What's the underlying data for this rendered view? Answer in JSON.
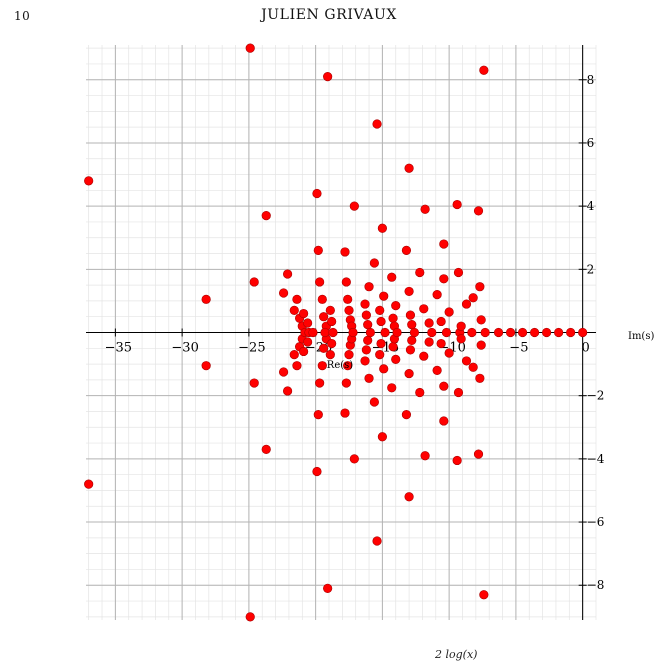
{
  "page": {
    "page_number": "10",
    "running_head": "JULIEN GRIVAUX",
    "footer_fragment": "2 log(x)"
  },
  "colors": {
    "points": "#ff0000",
    "points_edge": "#aa0000",
    "grid_major": "#b3b3b3",
    "grid_minor": "#e4e4e4",
    "axis": "#000000"
  },
  "chart_data": {
    "type": "scatter",
    "xlabel": "Re(s)",
    "ylabel": "Im(s)",
    "xlim": [
      -37.2,
      1.0
    ],
    "ylim": [
      -9.1,
      9.1
    ],
    "xticks": [
      -35,
      -30,
      -25,
      -20,
      -15,
      -10,
      -5,
      0
    ],
    "xtick_labels": [
      "−35",
      "−30",
      "−25",
      "−20",
      "−15",
      "−10",
      "−5",
      "0"
    ],
    "yticks": [
      -8,
      -6,
      -4,
      -2,
      2,
      4,
      6,
      8
    ],
    "ytick_labels": [
      "−8",
      "−6",
      "−4",
      "−2",
      "2",
      "4",
      "6",
      "8"
    ],
    "grid": true,
    "points": [
      [
        -37,
        4.8
      ],
      [
        -37,
        -4.8
      ],
      [
        -28.2,
        1.05
      ],
      [
        -28.2,
        -1.05
      ],
      [
        -24.9,
        9.0
      ],
      [
        -24.9,
        -9.0
      ],
      [
        -24.6,
        1.6
      ],
      [
        -24.6,
        -1.6
      ],
      [
        -23.7,
        3.7
      ],
      [
        -23.7,
        -3.7
      ],
      [
        -22.4,
        1.25
      ],
      [
        -22.4,
        -1.25
      ],
      [
        -22.1,
        1.85
      ],
      [
        -22.1,
        -1.85
      ],
      [
        -21.6,
        0.7
      ],
      [
        -21.6,
        -0.7
      ],
      [
        -21.4,
        1.05
      ],
      [
        -21.4,
        -1.05
      ],
      [
        -21.2,
        0.45
      ],
      [
        -21.2,
        -0.45
      ],
      [
        -21.0,
        0.2
      ],
      [
        -21.0,
        -0.2
      ],
      [
        -20.9,
        0.6
      ],
      [
        -20.9,
        -0.6
      ],
      [
        -20.6,
        0.3
      ],
      [
        -20.6,
        -0.3
      ],
      [
        -20.8,
        0.0
      ],
      [
        -20.5,
        0.0
      ],
      [
        -20.2,
        0.0
      ],
      [
        -19.9,
        4.4
      ],
      [
        -19.9,
        -4.4
      ],
      [
        -19.8,
        2.6
      ],
      [
        -19.8,
        -2.6
      ],
      [
        -19.7,
        1.6
      ],
      [
        -19.7,
        -1.6
      ],
      [
        -19.5,
        1.05
      ],
      [
        -19.5,
        -1.05
      ],
      [
        -19.4,
        0.5
      ],
      [
        -19.4,
        -0.5
      ],
      [
        -19.2,
        0.2
      ],
      [
        -19.2,
        -0.2
      ],
      [
        -19.3,
        0.0
      ],
      [
        -19.1,
        8.1
      ],
      [
        -19.1,
        -8.1
      ],
      [
        -18.9,
        0.7
      ],
      [
        -18.9,
        -0.7
      ],
      [
        -18.8,
        0.35
      ],
      [
        -18.8,
        -0.35
      ],
      [
        -18.7,
        0.0
      ],
      [
        -17.8,
        2.55
      ],
      [
        -17.8,
        -2.55
      ],
      [
        -17.7,
        1.6
      ],
      [
        -17.7,
        -1.6
      ],
      [
        -17.6,
        1.05
      ],
      [
        -17.6,
        -1.05
      ],
      [
        -17.5,
        0.7
      ],
      [
        -17.5,
        -0.7
      ],
      [
        -17.4,
        0.4
      ],
      [
        -17.4,
        -0.4
      ],
      [
        -17.3,
        0.2
      ],
      [
        -17.3,
        -0.2
      ],
      [
        -17.2,
        0.0
      ],
      [
        -17.1,
        4.0
      ],
      [
        -17.1,
        -4.0
      ],
      [
        -16.3,
        0.9
      ],
      [
        -16.3,
        -0.9
      ],
      [
        -16.2,
        0.55
      ],
      [
        -16.2,
        -0.55
      ],
      [
        -16.1,
        0.25
      ],
      [
        -16.1,
        -0.25
      ],
      [
        -16.0,
        1.45
      ],
      [
        -16.0,
        -1.45
      ],
      [
        -15.9,
        0.0
      ],
      [
        -15.6,
        2.2
      ],
      [
        -15.6,
        -2.2
      ],
      [
        -15.4,
        6.6
      ],
      [
        -15.4,
        -6.6
      ],
      [
        -15.2,
        0.7
      ],
      [
        -15.2,
        -0.7
      ],
      [
        -15.1,
        0.35
      ],
      [
        -15.1,
        -0.35
      ],
      [
        -15.0,
        3.3
      ],
      [
        -15.0,
        -3.3
      ],
      [
        -14.9,
        1.15
      ],
      [
        -14.9,
        -1.15
      ],
      [
        -14.8,
        0.0
      ],
      [
        -14.3,
        1.75
      ],
      [
        -14.3,
        -1.75
      ],
      [
        -14.2,
        0.45
      ],
      [
        -14.2,
        -0.45
      ],
      [
        -14.1,
        0.2
      ],
      [
        -14.1,
        -0.2
      ],
      [
        -14.0,
        0.85
      ],
      [
        -14.0,
        -0.85
      ],
      [
        -13.9,
        0.0
      ],
      [
        -13.2,
        2.6
      ],
      [
        -13.2,
        -2.6
      ],
      [
        -13.0,
        5.2
      ],
      [
        -13.0,
        -5.2
      ],
      [
        -13.0,
        1.3
      ],
      [
        -13.0,
        -1.3
      ],
      [
        -12.9,
        0.55
      ],
      [
        -12.9,
        -0.55
      ],
      [
        -12.8,
        0.25
      ],
      [
        -12.8,
        -0.25
      ],
      [
        -12.6,
        0.0
      ],
      [
        -12.2,
        1.9
      ],
      [
        -12.2,
        -1.9
      ],
      [
        -11.9,
        0.75
      ],
      [
        -11.9,
        -0.75
      ],
      [
        -11.8,
        3.9
      ],
      [
        -11.8,
        -3.9
      ],
      [
        -11.5,
        0.3
      ],
      [
        -11.5,
        -0.3
      ],
      [
        -11.3,
        0.0
      ],
      [
        -10.9,
        1.2
      ],
      [
        -10.9,
        -1.2
      ],
      [
        -10.6,
        0.35
      ],
      [
        -10.6,
        -0.35
      ],
      [
        -10.4,
        1.7
      ],
      [
        -10.4,
        -1.7
      ],
      [
        -10.4,
        2.8
      ],
      [
        -10.4,
        -2.8
      ],
      [
        -10.2,
        0.0
      ],
      [
        -10.0,
        0.65
      ],
      [
        -10.0,
        -0.65
      ],
      [
        -9.4,
        4.05
      ],
      [
        -9.4,
        -4.05
      ],
      [
        -9.3,
        1.9
      ],
      [
        -9.3,
        -1.9
      ],
      [
        -9.2,
        0.0
      ],
      [
        -9.1,
        0.2
      ],
      [
        -9.1,
        -0.2
      ],
      [
        -8.7,
        0.9
      ],
      [
        -8.7,
        -0.9
      ],
      [
        -8.2,
        1.1
      ],
      [
        -8.2,
        -1.1
      ],
      [
        -8.3,
        0.0
      ],
      [
        -7.8,
        3.85
      ],
      [
        -7.8,
        -3.85
      ],
      [
        -7.7,
        1.45
      ],
      [
        -7.7,
        -1.45
      ],
      [
        -7.6,
        0.4
      ],
      [
        -7.6,
        -0.4
      ],
      [
        -7.4,
        8.3
      ],
      [
        -7.4,
        -8.3
      ],
      [
        -7.3,
        0.0
      ],
      [
        -6.3,
        0.0
      ],
      [
        -5.4,
        0.0
      ],
      [
        -4.5,
        0.0
      ],
      [
        -3.6,
        0.0
      ],
      [
        -2.7,
        0.0
      ],
      [
        -1.8,
        0.0
      ],
      [
        -0.9,
        0.0
      ],
      [
        0.0,
        0.0
      ]
    ]
  }
}
